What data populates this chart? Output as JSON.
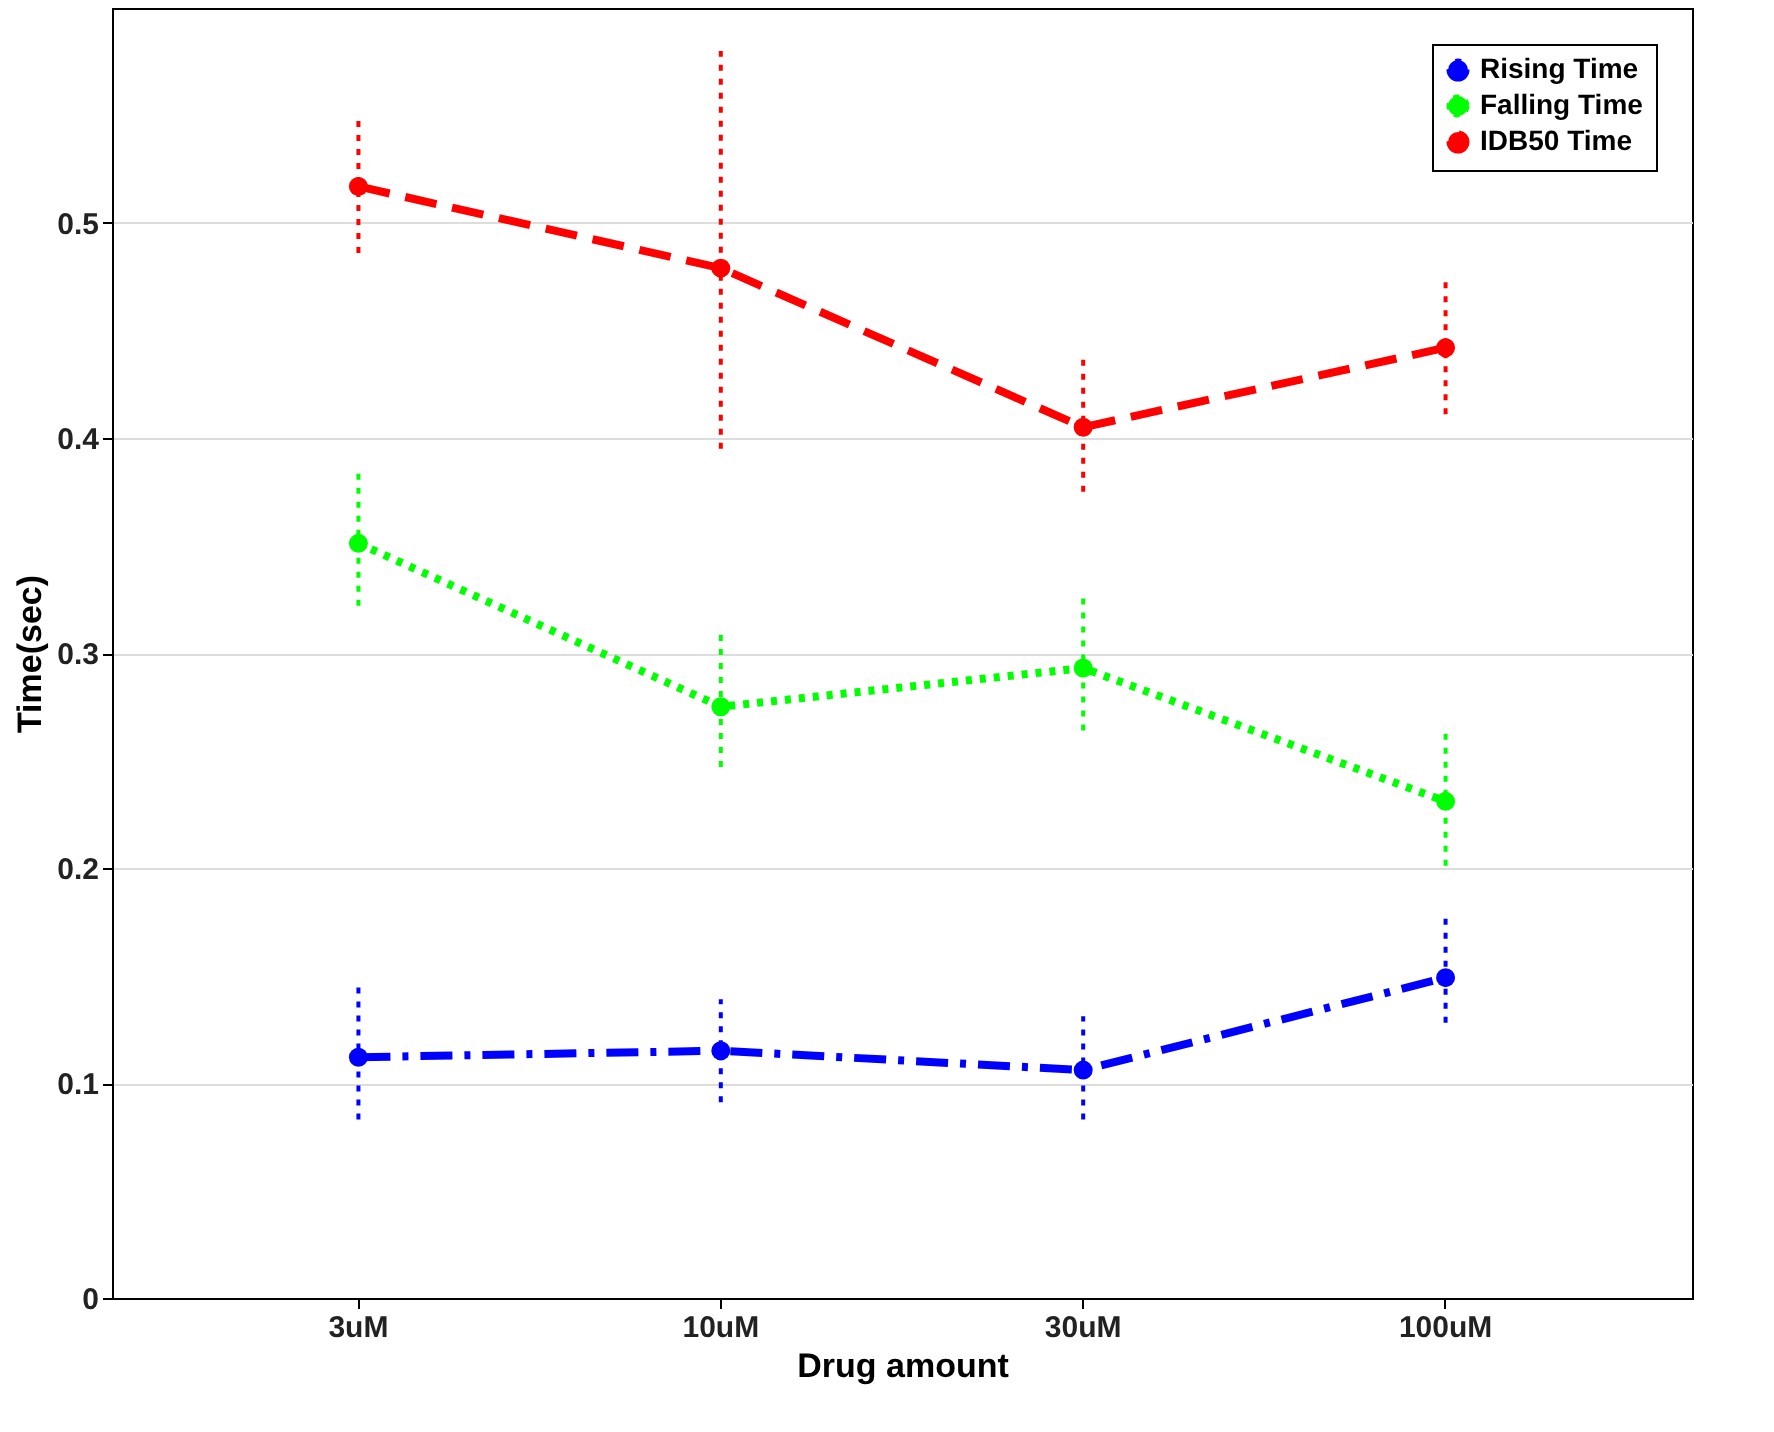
{
  "chart_data": {
    "type": "line",
    "xlabel": "Drug amount",
    "ylabel": "Time(sec)",
    "categories": [
      "3uM",
      "10uM",
      "30uM",
      "100uM"
    ],
    "ylim": [
      0,
      0.6
    ],
    "yticks": [
      0,
      0.1,
      0.2,
      0.3,
      0.4,
      0.5
    ],
    "grid": "y",
    "legend": "top right",
    "marker": "circle",
    "series": [
      {
        "name": "Rising Time",
        "color": "#0000ff",
        "line_style": "dashdot",
        "values": [
          0.112,
          0.115,
          0.106,
          0.149
        ],
        "errors": [
          [
            0.083,
            0.146
          ],
          [
            0.091,
            0.139
          ],
          [
            0.083,
            0.131
          ],
          [
            0.128,
            0.177
          ]
        ]
      },
      {
        "name": "Falling Time",
        "color": "#00ff00",
        "line_style": "dotted",
        "values": [
          0.351,
          0.275,
          0.293,
          0.231
        ],
        "errors": [
          [
            0.322,
            0.385
          ],
          [
            0.247,
            0.31
          ],
          [
            0.264,
            0.328
          ],
          [
            0.201,
            0.263
          ]
        ]
      },
      {
        "name": "IDB50 Time",
        "color": "#ff0000",
        "line_style": "dashed",
        "values": [
          0.517,
          0.479,
          0.405,
          0.442
        ],
        "errors": [
          [
            0.486,
            0.55
          ],
          [
            0.395,
            0.58
          ],
          [
            0.375,
            0.439
          ],
          [
            0.411,
            0.475
          ]
        ]
      }
    ]
  }
}
